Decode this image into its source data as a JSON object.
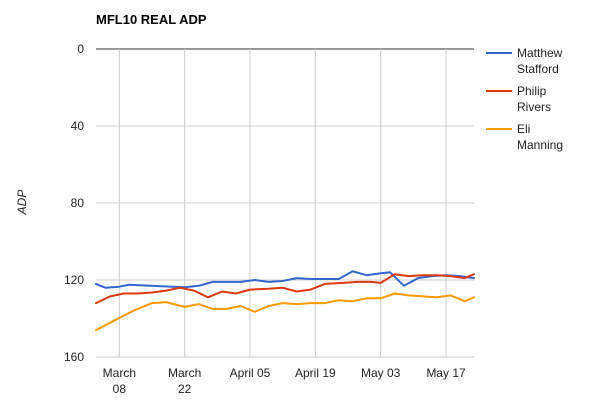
{
  "chart_data": {
    "type": "line",
    "title": "MFL10 REAL ADP",
    "xlabel": "",
    "ylabel": "ADP",
    "y_reversed": true,
    "ylim": [
      0,
      160
    ],
    "y_ticks": [
      "0",
      "40",
      "80",
      "120",
      "160"
    ],
    "y_tick_values": [
      0,
      40,
      80,
      120,
      160
    ],
    "x_start": "2015-03-03",
    "x_end": "2015-05-23",
    "x_ticks": [
      {
        "date": "2015-03-08",
        "line1": "March",
        "line2": "08"
      },
      {
        "date": "2015-03-22",
        "line1": "March",
        "line2": "22"
      },
      {
        "date": "2015-04-05",
        "line1": "April 05",
        "line2": ""
      },
      {
        "date": "2015-04-19",
        "line1": "April 19",
        "line2": ""
      },
      {
        "date": "2015-05-03",
        "line1": "May 03",
        "line2": ""
      },
      {
        "date": "2015-05-17",
        "line1": "May 17",
        "line2": ""
      }
    ],
    "grid": true,
    "legend_position": "right",
    "series": [
      {
        "name": "Matthew Stafford",
        "name_lines": [
          "Matthew",
          "Stafford"
        ],
        "color": "#3366cc",
        "points": [
          [
            "2015-03-03",
            122
          ],
          [
            "2015-03-05",
            124
          ],
          [
            "2015-03-08",
            123.5
          ],
          [
            "2015-03-10",
            122.5
          ],
          [
            "2015-03-13",
            122.8
          ],
          [
            "2015-03-17",
            123.2
          ],
          [
            "2015-03-22",
            123.8
          ],
          [
            "2015-03-25",
            123
          ],
          [
            "2015-03-28",
            121
          ],
          [
            "2015-03-31",
            121
          ],
          [
            "2015-04-03",
            121
          ],
          [
            "2015-04-06",
            120
          ],
          [
            "2015-04-09",
            121
          ],
          [
            "2015-04-12",
            120.5
          ],
          [
            "2015-04-15",
            119
          ],
          [
            "2015-04-18",
            119.5
          ],
          [
            "2015-04-21",
            119.5
          ],
          [
            "2015-04-24",
            119.5
          ],
          [
            "2015-04-27",
            115.5
          ],
          [
            "2015-04-30",
            117.5
          ],
          [
            "2015-05-03",
            116.5
          ],
          [
            "2015-05-05",
            116
          ],
          [
            "2015-05-08",
            123
          ],
          [
            "2015-05-11",
            119
          ],
          [
            "2015-05-14",
            118
          ],
          [
            "2015-05-17",
            117.5
          ],
          [
            "2015-05-20",
            118
          ],
          [
            "2015-05-23",
            119
          ]
        ]
      },
      {
        "name": "Philip Rivers",
        "name_lines": [
          "Philip",
          "Rivers"
        ],
        "color": "#dc3912",
        "points": [
          [
            "2015-03-03",
            132
          ],
          [
            "2015-03-06",
            128.5
          ],
          [
            "2015-03-09",
            127
          ],
          [
            "2015-03-12",
            127
          ],
          [
            "2015-03-15",
            126.5
          ],
          [
            "2015-03-18",
            125.5
          ],
          [
            "2015-03-21",
            124
          ],
          [
            "2015-03-24",
            125.5
          ],
          [
            "2015-03-27",
            129
          ],
          [
            "2015-03-30",
            126
          ],
          [
            "2015-04-02",
            127
          ],
          [
            "2015-04-05",
            125
          ],
          [
            "2015-04-09",
            124.5
          ],
          [
            "2015-04-12",
            124
          ],
          [
            "2015-04-15",
            126
          ],
          [
            "2015-04-18",
            125
          ],
          [
            "2015-04-21",
            122
          ],
          [
            "2015-04-25",
            121.5
          ],
          [
            "2015-04-28",
            121
          ],
          [
            "2015-05-01",
            121
          ],
          [
            "2015-05-03",
            121.5
          ],
          [
            "2015-05-06",
            117
          ],
          [
            "2015-05-09",
            118
          ],
          [
            "2015-05-12",
            117.5
          ],
          [
            "2015-05-15",
            117.5
          ],
          [
            "2015-05-18",
            118
          ],
          [
            "2015-05-21",
            119
          ],
          [
            "2015-05-23",
            117
          ]
        ]
      },
      {
        "name": "Eli Manning",
        "name_lines": [
          "Eli",
          "Manning"
        ],
        "color": "#ff9900",
        "points": [
          [
            "2015-03-03",
            146
          ],
          [
            "2015-03-07",
            141
          ],
          [
            "2015-03-11",
            136
          ],
          [
            "2015-03-15",
            132
          ],
          [
            "2015-03-18",
            131.5
          ],
          [
            "2015-03-22",
            134
          ],
          [
            "2015-03-25",
            132.5
          ],
          [
            "2015-03-28",
            135
          ],
          [
            "2015-03-31",
            135
          ],
          [
            "2015-04-03",
            133.5
          ],
          [
            "2015-04-06",
            136.5
          ],
          [
            "2015-04-09",
            133.5
          ],
          [
            "2015-04-12",
            132
          ],
          [
            "2015-04-15",
            132.5
          ],
          [
            "2015-04-18",
            132
          ],
          [
            "2015-04-21",
            132
          ],
          [
            "2015-04-24",
            130.5
          ],
          [
            "2015-04-27",
            131
          ],
          [
            "2015-04-30",
            129.5
          ],
          [
            "2015-05-03",
            129.5
          ],
          [
            "2015-05-06",
            127
          ],
          [
            "2015-05-09",
            128
          ],
          [
            "2015-05-12",
            128.5
          ],
          [
            "2015-05-15",
            129
          ],
          [
            "2015-05-18",
            128
          ],
          [
            "2015-05-21",
            131
          ],
          [
            "2015-05-23",
            129
          ]
        ]
      }
    ]
  }
}
